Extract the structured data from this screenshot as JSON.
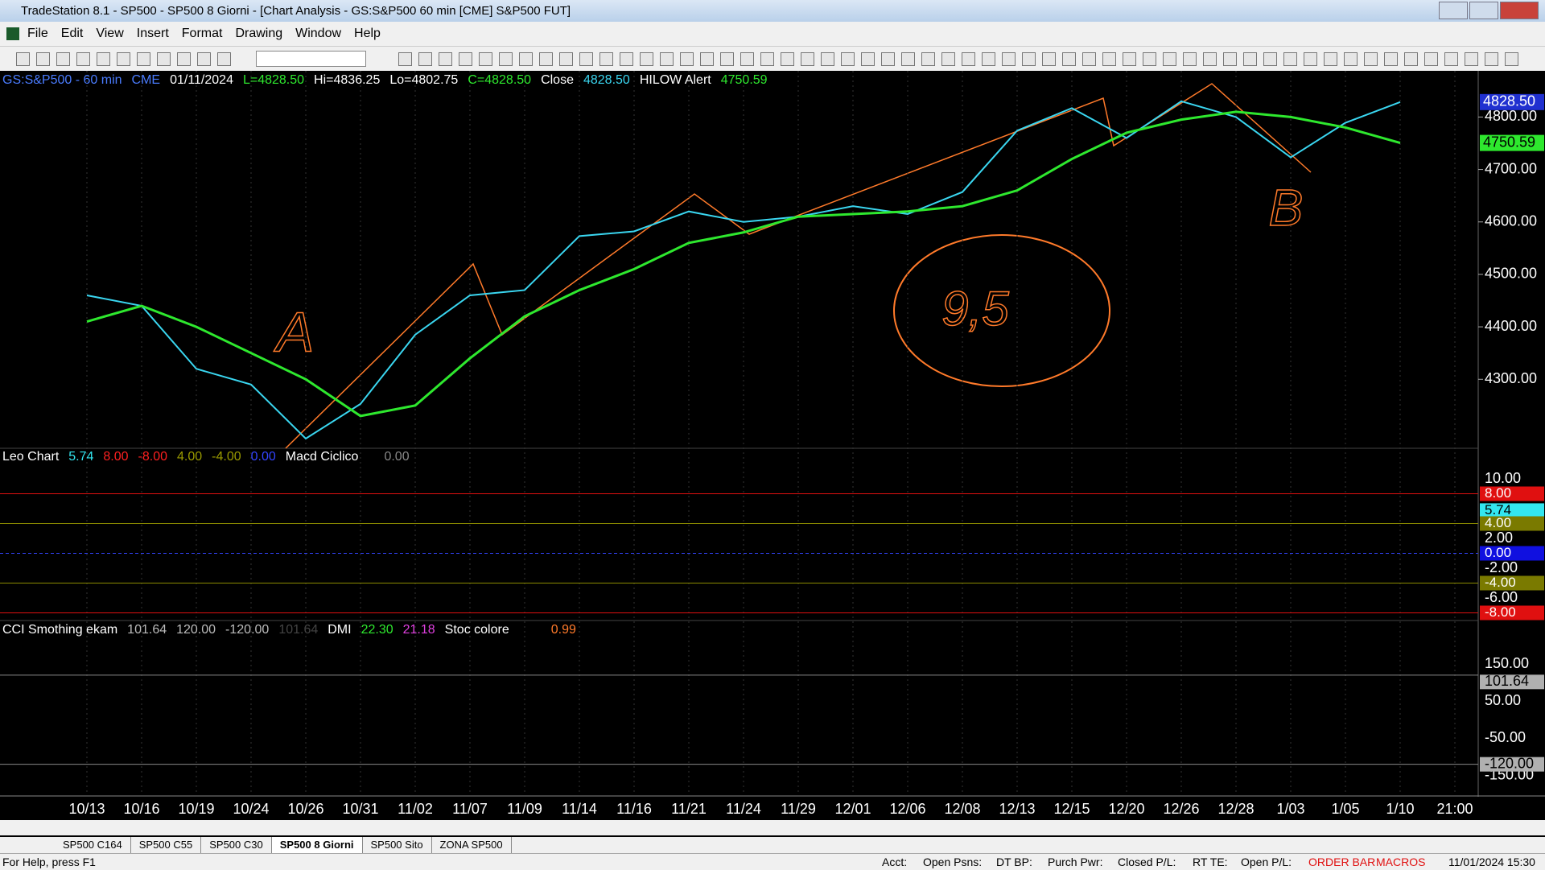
{
  "window": {
    "title": "TradeStation 8.1 - SP500 - SP500 8 Giorni - [Chart Analysis - GS:S&P500  60 min  [CME] S&P500 FUT]"
  },
  "menu": [
    "File",
    "Edit",
    "View",
    "Insert",
    "Format",
    "Drawing",
    "Window",
    "Help"
  ],
  "chart_header": {
    "symbol": "GS:S&P500 - 60 min",
    "exchange": "CME",
    "date": "01/11/2024",
    "last": "L=4828.50",
    "high": "Hi=4836.25",
    "low": "Lo=4802.75",
    "close": "C=4828.50",
    "close_value": "4828.50",
    "alert_value": "4750.59"
  },
  "chart_data": {
    "type": "line",
    "categories": [
      "10/13",
      "10/16",
      "10/19",
      "10/24",
      "10/26",
      "10/31",
      "11/02",
      "11/07",
      "11/09",
      "11/14",
      "11/16",
      "11/21",
      "11/24",
      "11/29",
      "12/01",
      "12/06",
      "12/08",
      "12/13",
      "12/15",
      "12/20",
      "12/26",
      "12/28",
      "1/03",
      "1/05",
      "1/10",
      "21:00"
    ],
    "series": [
      {
        "name": "Close",
        "color": "#3ad6f0",
        "values": [
          4460,
          4440,
          4320,
          4290,
          4187,
          4253,
          4385,
          4460,
          4470,
          4573,
          4582,
          4620,
          4600,
          4610,
          4630,
          4615,
          4657,
          4774,
          4817,
          4760,
          4830,
          4800,
          4723,
          4789,
          4828.5,
          null
        ]
      },
      {
        "name": "HILOW Alert",
        "color": "#2ee82e",
        "values": [
          4410,
          4440,
          4400,
          4350,
          4300,
          4230,
          4250,
          4340,
          4420,
          4470,
          4510,
          4560,
          4580,
          4610,
          4615,
          4620,
          4630,
          4660,
          4720,
          4770,
          4795,
          4810,
          4800,
          4780,
          4750.59,
          null
        ]
      }
    ],
    "ylim": [
      4170,
      4885
    ],
    "yticks": [
      {
        "value": 4300,
        "label": "4300.00"
      },
      {
        "value": 4400,
        "label": "4400.00"
      },
      {
        "value": 4500,
        "label": "4500.00"
      },
      {
        "value": 4600,
        "label": "4600.00"
      },
      {
        "value": 4700,
        "label": "4700.00"
      },
      {
        "value": 4800,
        "label": "4800.00"
      }
    ],
    "annotations": [
      "A",
      "9,5",
      "B"
    ]
  },
  "panel2": {
    "title": "Leo Chart",
    "values": [
      "5.74",
      "8.00",
      "-8.00",
      "4.00",
      "-4.00",
      "0.00"
    ],
    "indicator": "Macd Ciclico",
    "indicator_value": "0.00",
    "axis": [
      "10.00",
      "2.00",
      "-2.00",
      "-6.00"
    ]
  },
  "panel3": {
    "title": "CCI Smothing ekam",
    "values": [
      "101.64",
      "120.00",
      "-120.00",
      "101.64"
    ],
    "dmi": "DMI",
    "dmi_values": [
      "22.30",
      "21.18"
    ],
    "stoc": "Stoc colore",
    "stoc_value": "0.99",
    "axis": [
      "150.00",
      "50.00",
      "-50.00",
      "-150.00"
    ]
  },
  "tabs": [
    "SP500 C164",
    "SP500 C55",
    "SP500 C30",
    "SP500 8 Giorni",
    "SP500 Sito",
    "ZONA SP500"
  ],
  "status": {
    "help": "For Help, press F1",
    "fields": [
      "Acct:",
      "Open Psns:",
      "DT BP:",
      "Purch Pwr:",
      "Closed P/L:",
      "RT TE:",
      "Open P/L:"
    ],
    "order_bar": "ORDER BAR",
    "macros": "MACROS",
    "datetime": "11/01/2024 15:30"
  }
}
